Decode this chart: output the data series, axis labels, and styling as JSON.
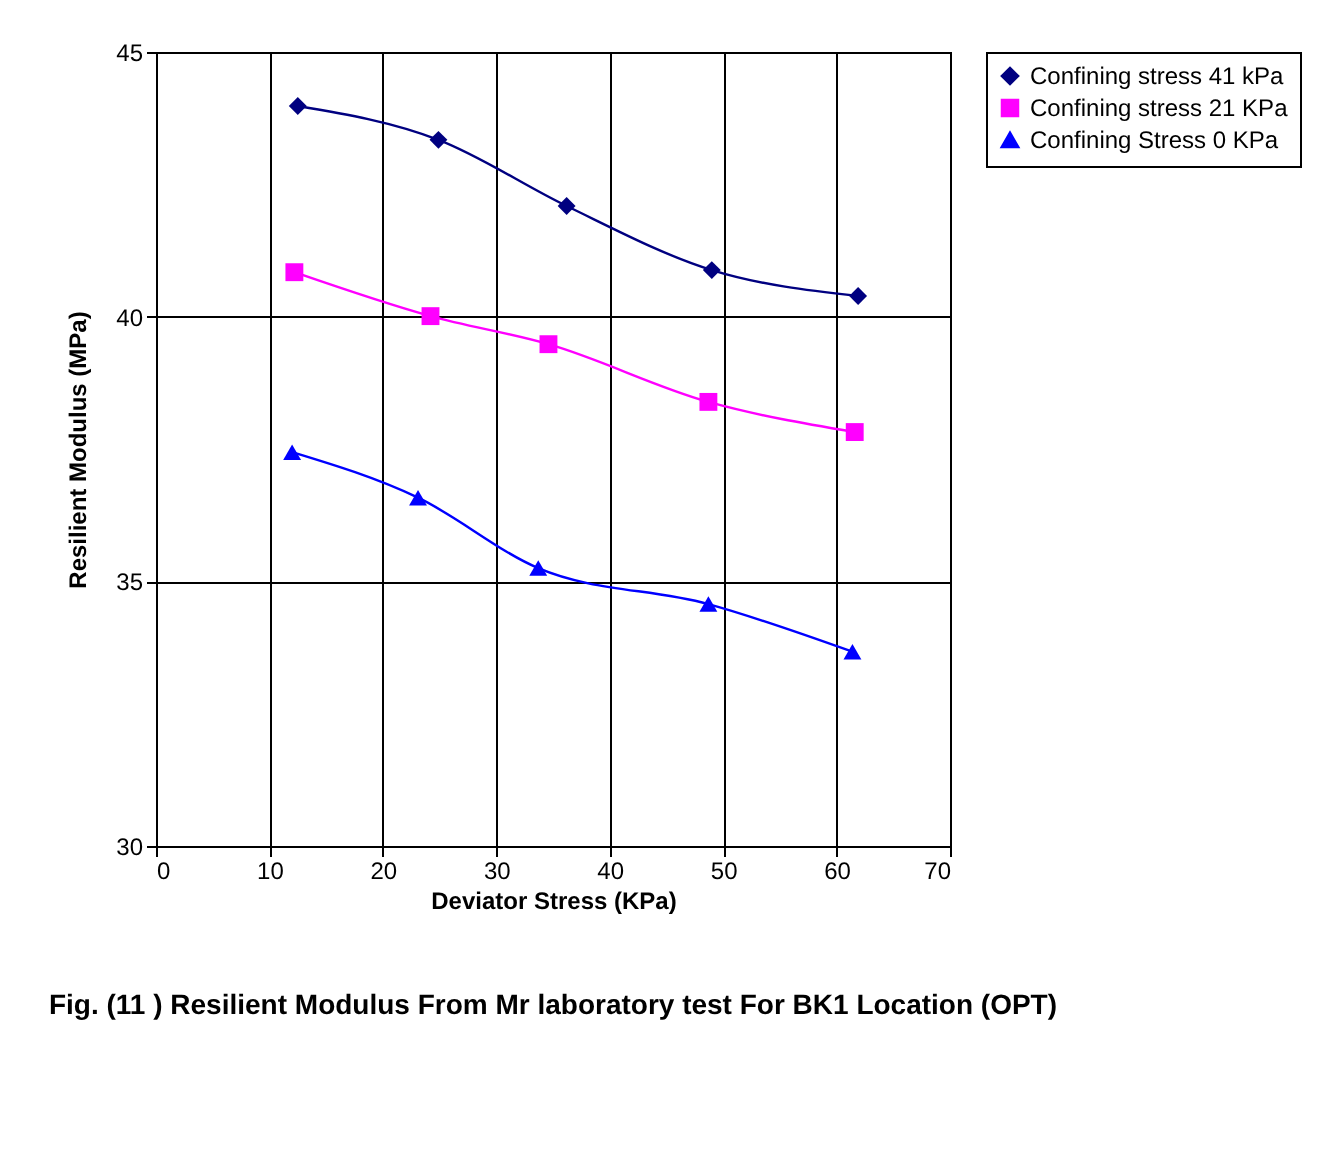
{
  "chart_data": {
    "type": "line",
    "title": "Fig. (11 )  Resilient Modulus From Mr laboratory test For  BK1 Location (OPT)",
    "xlabel": "Deviator Stress (KPa)",
    "ylabel": "Resilient Modulus (MPa)",
    "xlim": [
      0,
      70
    ],
    "xticks": [
      0,
      10,
      20,
      30,
      40,
      50,
      60,
      70
    ],
    "ylim": [
      30,
      45
    ],
    "yticks": [
      30,
      35,
      40,
      45
    ],
    "grid": true,
    "legend": "top right",
    "line_style": "solid",
    "series": [
      {
        "name": "Confining stress 41 kPa",
        "color": "#000080",
        "marker": "diamond",
        "x": [
          12.5,
          24.9,
          36.2,
          49.0,
          61.9
        ],
        "values": [
          43.98,
          43.34,
          42.09,
          40.88,
          40.39
        ]
      },
      {
        "name": "Confining stress 21 KPa",
        "color": "#ff00ff",
        "marker": "square",
        "x": [
          12.2,
          24.2,
          34.6,
          48.7,
          61.6
        ],
        "values": [
          40.84,
          40.01,
          39.48,
          38.39,
          37.82
        ]
      },
      {
        "name": "Confining Stress 0 KPa",
        "color": "#0000ff",
        "marker": "triangle",
        "x": [
          12.0,
          23.1,
          33.7,
          48.7,
          61.4
        ],
        "values": [
          37.44,
          36.58,
          35.25,
          34.57,
          33.67
        ]
      }
    ]
  }
}
